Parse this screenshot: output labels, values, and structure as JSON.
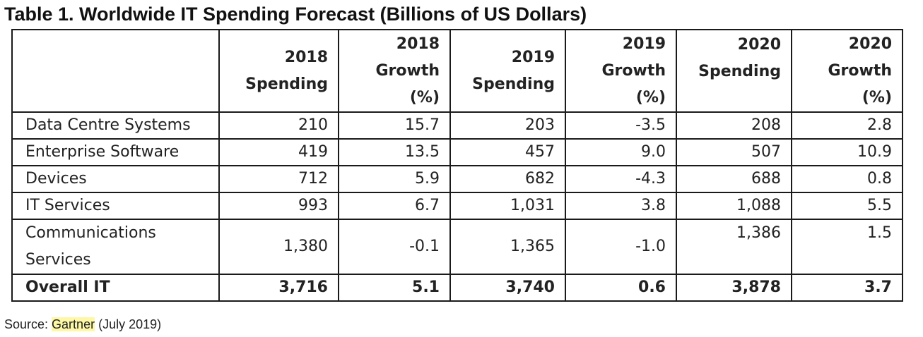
{
  "title": "Table 1. Worldwide IT Spending Forecast (Billions of US Dollars)",
  "table": {
    "columns": [
      {
        "label": "",
        "lines": []
      },
      {
        "label": "2018 Spending",
        "lines": [
          "2018",
          "Spending"
        ]
      },
      {
        "label": "2018 Growth (%)",
        "lines": [
          "2018",
          "Growth",
          "(%)"
        ]
      },
      {
        "label": "2019 Spending",
        "lines": [
          "2019",
          "Spending"
        ]
      },
      {
        "label": "2019 Growth (%)",
        "lines": [
          "2019",
          "Growth",
          "(%)"
        ]
      },
      {
        "label": "2020 Spending",
        "lines": [
          "2020",
          "Spending"
        ]
      },
      {
        "label": "2020 Growth (%)",
        "lines": [
          "2020",
          "Growth",
          "(%)"
        ]
      }
    ],
    "rows": [
      {
        "label": "Data Centre Systems",
        "values": [
          "210",
          "15.7",
          "203",
          "-3.5",
          "208",
          "2.8"
        ]
      },
      {
        "label": "Enterprise Software",
        "values": [
          "419",
          "13.5",
          "457",
          "9.0",
          "507",
          "10.9"
        ]
      },
      {
        "label": "Devices",
        "values": [
          "712",
          "5.9",
          "682",
          "-4.3",
          "688",
          "0.8"
        ]
      },
      {
        "label": "IT Services",
        "values": [
          "993",
          "6.7",
          "1,031",
          "3.8",
          "1,088",
          "5.5"
        ]
      },
      {
        "label": "Communications Services",
        "values": [
          "1,380",
          "-0.1",
          "1,365",
          "-1.0",
          "1,386",
          "1.5"
        ]
      },
      {
        "label": "Overall IT",
        "values": [
          "3,716",
          "5.1",
          "3,740",
          "0.6",
          "3,878",
          "3.7"
        ]
      }
    ]
  },
  "source": {
    "prefix": "Source: ",
    "link_text": "Gartner",
    "suffix": " (July 2019)",
    "highlight_color": "#fdf7a6"
  }
}
